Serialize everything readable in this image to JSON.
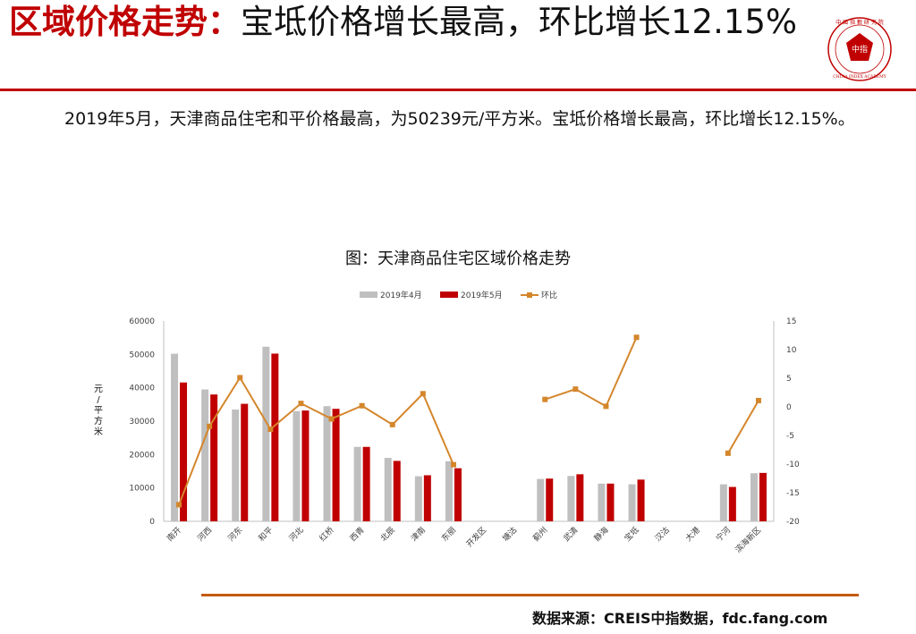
{
  "header": {
    "title_red": "区域价格走势：",
    "title_black": "宝坻价格增长最高，环比增长12.15%"
  },
  "logo": {
    "text": "中国指数研究院 CHINA INDEX ACADEMY",
    "accent": "#c00000"
  },
  "summary": "2019年5月，天津商品住宅和平价格最高，为50239元/平方米。宝坻价格增长最高，环比增长12.15%。",
  "chart_data": {
    "type": "bar",
    "title": "图：天津商品住宅区域价格走势",
    "categories": [
      "南开",
      "河西",
      "河东",
      "和平",
      "河北",
      "红桥",
      "西青",
      "北辰",
      "津南",
      "东丽",
      "开发区",
      "塘沽",
      "蓟州",
      "武清",
      "静海",
      "宝坻",
      "汉沽",
      "大港",
      "宁河",
      "滨海新区"
    ],
    "series": [
      {
        "name": "2019年4月",
        "type": "bar",
        "color": "#bfbfbf",
        "values": [
          50200,
          39500,
          33500,
          52300,
          33000,
          34500,
          22300,
          19000,
          13500,
          18000,
          null,
          null,
          12700,
          13600,
          11300,
          11100,
          null,
          null,
          11100,
          14400
        ]
      },
      {
        "name": "2019年5月",
        "type": "bar",
        "color": "#c00000",
        "values": [
          41600,
          38000,
          35200,
          50239,
          33200,
          33700,
          22300,
          18100,
          13800,
          15900,
          null,
          null,
          12800,
          14100,
          11300,
          12500,
          null,
          null,
          10300,
          14500
        ]
      },
      {
        "name": "环比",
        "type": "line",
        "axis": "right",
        "color": "#d4862b",
        "values": [
          -17.1,
          -3.4,
          5.1,
          -3.9,
          0.6,
          -2.1,
          0.2,
          -3.1,
          2.3,
          -10.1,
          null,
          null,
          1.3,
          3.1,
          0.1,
          12.15,
          null,
          null,
          -8.1,
          1.1
        ]
      }
    ],
    "y_left": {
      "label": "元/平方米",
      "ylim": [
        0,
        60000
      ],
      "ticks": [
        0,
        10000,
        20000,
        30000,
        40000,
        50000,
        60000
      ]
    },
    "y_right": {
      "label": "%",
      "ylim": [
        -20,
        15
      ],
      "ticks": [
        -20,
        -15,
        -10,
        -5,
        0,
        5,
        10,
        15
      ]
    },
    "legend": "top-center",
    "grid": false
  },
  "footer": {
    "source": "数据来源：CREIS中指数据，fdc.fang.com"
  }
}
